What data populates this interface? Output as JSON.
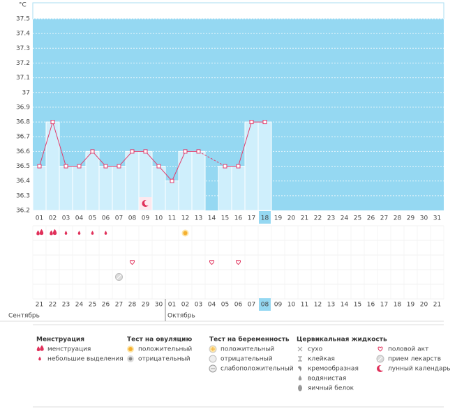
{
  "chart_data": {
    "type": "line",
    "y_unit": "°C",
    "categories": [
      "01",
      "02",
      "03",
      "04",
      "05",
      "06",
      "07",
      "08",
      "09",
      "10",
      "11",
      "12",
      "13",
      "14",
      "15",
      "16",
      "17",
      "18",
      "19",
      "20",
      "21",
      "22",
      "23",
      "24",
      "25",
      "26",
      "27",
      "28",
      "29",
      "30",
      "31"
    ],
    "values": [
      36.5,
      36.8,
      36.5,
      36.5,
      36.6,
      36.5,
      36.5,
      36.6,
      36.6,
      36.5,
      36.4,
      36.6,
      36.6,
      null,
      36.5,
      36.5,
      36.8,
      36.8,
      null,
      null,
      null,
      null,
      null,
      null,
      null,
      null,
      null,
      null,
      null,
      null,
      null
    ],
    "ylim": [
      36.2,
      37.5
    ],
    "yticks": [
      36.2,
      36.3,
      36.4,
      36.5,
      36.6,
      36.7,
      36.8,
      36.9,
      37,
      37.1,
      37.2,
      37.3,
      37.4,
      37.5
    ],
    "grid": true,
    "color": "#e23b6b",
    "selected": "18"
  },
  "calendar": {
    "dates": [
      "21",
      "22",
      "23",
      "24",
      "25",
      "26",
      "27",
      "28",
      "29",
      "30",
      "01",
      "02",
      "03",
      "04",
      "05",
      "06",
      "07",
      "08",
      "09",
      "10",
      "11",
      "12",
      "13",
      "14",
      "15",
      "16",
      "17",
      "18",
      "19",
      "20",
      "21"
    ],
    "date_colors": [
      "#e0305a",
      "#e0305a",
      "#333",
      "#333",
      "#333",
      "#333",
      "#333",
      "#e0305a",
      "#e0305a",
      "#333",
      "#333",
      "#333",
      "#333",
      "#333",
      "#e0305a",
      "#e0305a",
      "#333",
      "#333",
      "#333",
      "#333",
      "#333",
      "#e0305a",
      "#e0305a",
      "#333",
      "#333",
      "#333",
      "#333",
      "#333",
      "#e0305a",
      "#e0305a",
      "#333"
    ],
    "selected": "08",
    "months": [
      {
        "label": "Сентябрь",
        "from": "21"
      },
      {
        "label": "Октябрь",
        "from": "01"
      }
    ]
  },
  "legend": {
    "groups": [
      {
        "title": "Менструация",
        "items": [
          {
            "label": "менструация",
            "days": [
              "01",
              "02"
            ]
          },
          {
            "label": "небольшие выделения",
            "days": [
              "03",
              "04",
              "05",
              "06"
            ]
          }
        ]
      },
      {
        "title": "Тест на овуляцию",
        "items": [
          {
            "label": "положительный",
            "days": [
              "12"
            ]
          },
          {
            "label": "отрицательный"
          }
        ]
      },
      {
        "title": "Тест на беременность",
        "items": [
          {
            "label": "положительный"
          },
          {
            "label": "отрицательный"
          },
          {
            "label": "слабоположительный"
          }
        ]
      },
      {
        "title": "Цервикальная жидкость",
        "items": [
          {
            "label": "сухо"
          },
          {
            "label": "клейкая"
          },
          {
            "label": "кремообразная"
          },
          {
            "label": "водянистая"
          },
          {
            "label": "яичный белок"
          }
        ]
      },
      {
        "items": [
          {
            "label": "половой акт",
            "days": [
              "08",
              "14",
              "16"
            ]
          },
          {
            "label": "прием лекарств",
            "days": [
              "07"
            ]
          },
          {
            "label": "лунный календарь",
            "days": [
              "09"
            ]
          }
        ]
      }
    ]
  }
}
